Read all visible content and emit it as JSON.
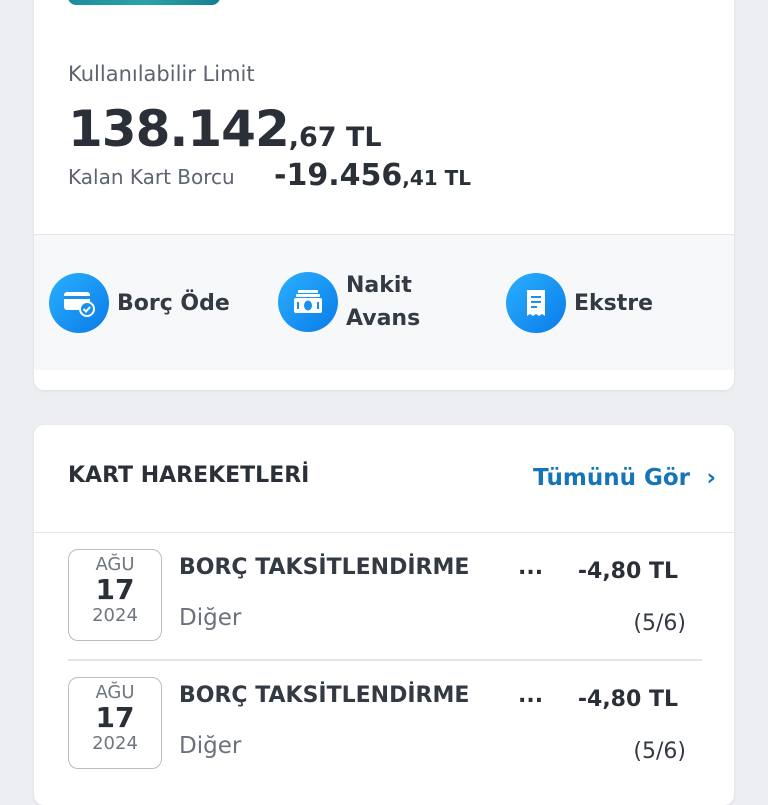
{
  "summary": {
    "available_limit_label": "Kullanılabilir Limit",
    "available_limit_int": "138.142",
    "available_limit_dec": ",67 TL",
    "debt_label": "Kalan Kart Borcu",
    "debt_int": "-19.456",
    "debt_dec": ",41 TL"
  },
  "actions": [
    {
      "label": "Borç Öde",
      "icon": "card-check-icon"
    },
    {
      "label_line1": "Nakit",
      "label_line2": "Avans",
      "icon": "cash-icon"
    },
    {
      "label": "Ekstre",
      "icon": "receipt-icon"
    }
  ],
  "transactions_card": {
    "title": "KART HAREKETLERİ",
    "see_all": "Tümünü Gör",
    "items": [
      {
        "month": "AĞU",
        "day": "17",
        "year": "2024",
        "title": "BORÇ TAKSİTLENDİRME",
        "more": "...",
        "amount": "-4,80 TL",
        "category": "Diğer",
        "installment": "(5/6)"
      },
      {
        "month": "AĞU",
        "day": "17",
        "year": "2024",
        "title": "BORÇ TAKSİTLENDİRME",
        "more": "...",
        "amount": "-4,80 TL",
        "category": "Diğer",
        "installment": "(5/6)"
      }
    ]
  },
  "colors": {
    "accent": "#1674b8",
    "icon_blue": "#0a7be8"
  }
}
